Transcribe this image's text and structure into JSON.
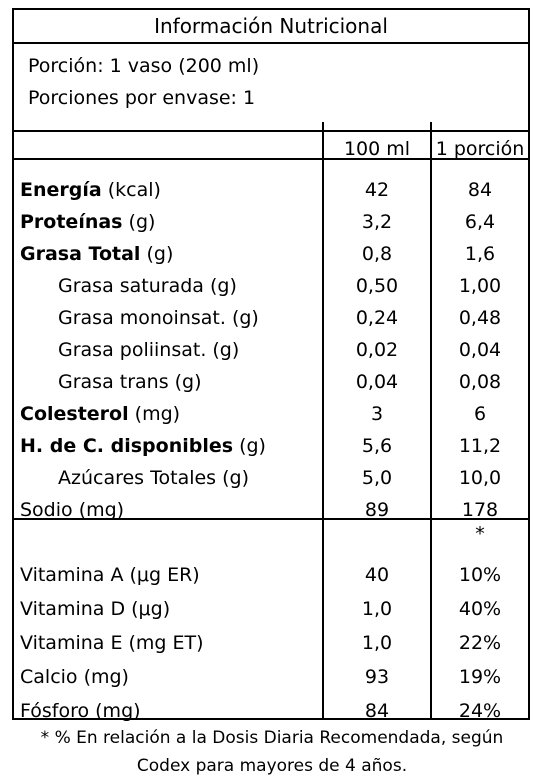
{
  "title": "Información Nutricional",
  "serving": {
    "portion": "Porción:  1 vaso (200 ml)",
    "per_pack": "Porciones por envase:   1"
  },
  "columns": [
    "100 ml",
    "1 porción"
  ],
  "nutrients": [
    {
      "bold": "Energía",
      "unit": " (kcal)",
      "v100": "42",
      "vportion": "84"
    },
    {
      "bold": "Proteínas",
      "unit": " (g)",
      "v100": "3,2",
      "vportion": "6,4"
    },
    {
      "bold": "Grasa Total",
      "unit": " (g)",
      "v100": "0,8",
      "vportion": "1,6"
    },
    {
      "label": "Grasa saturada (g)",
      "v100": "0,50",
      "vportion": "1,00"
    },
    {
      "label": "Grasa monoinsat. (g)",
      "v100": "0,24",
      "vportion": "0,48"
    },
    {
      "label": "Grasa poliinsat. (g)",
      "v100": "0,02",
      "vportion": "0,04"
    },
    {
      "label": "Grasa trans (g)",
      "v100": "0,04",
      "vportion": "0,08"
    },
    {
      "bold": "Colesterol",
      "unit": " (mg)",
      "v100": "3",
      "vportion": "6"
    },
    {
      "bold": "H. de C. disponibles",
      "unit": " (g)",
      "v100": "5,6",
      "vportion": "11,2"
    },
    {
      "label": "Azúcares Totales (g)",
      "v100": "5,0",
      "vportion": "10,0"
    },
    {
      "label": "Sodio (mg)",
      "v100": "89",
      "vportion": "178"
    }
  ],
  "vitamins_header": {
    "star": "*"
  },
  "vitamins": [
    {
      "label": "Vitamina A (μg ER)",
      "v100": "40",
      "vportion": "10%"
    },
    {
      "label": "Vitamina D (μg)",
      "v100": "1,0",
      "vportion": "40%"
    },
    {
      "label": "Vitamina E (mg ET)",
      "v100": "1,0",
      "vportion": "22%"
    },
    {
      "label": "Calcio (mg)",
      "v100": "93",
      "vportion": "19%"
    },
    {
      "label": "Fósforo (mg)",
      "v100": "84",
      "vportion": "24%"
    }
  ],
  "footnote": [
    "* % En relación a la Dosis Diaria Recomendada, según",
    "Codex para mayores de 4 años."
  ]
}
